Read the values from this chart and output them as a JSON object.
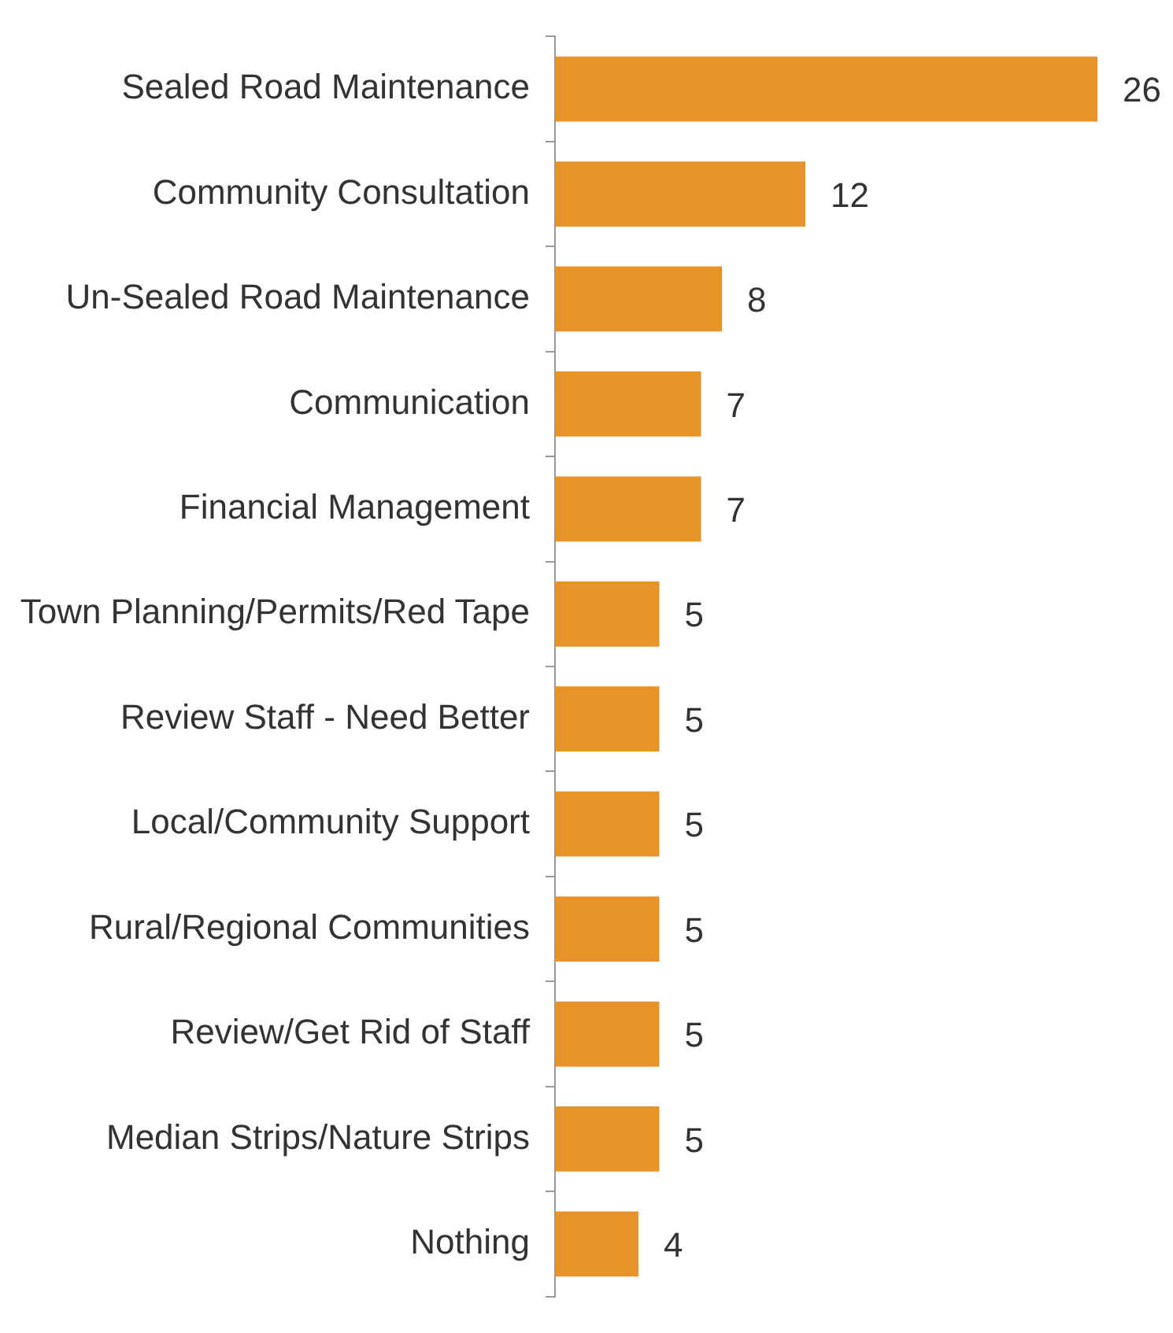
{
  "chart_data": {
    "type": "bar",
    "orientation": "horizontal",
    "categories": [
      "Sealed Road Maintenance",
      "Community Consultation",
      "Un-Sealed Road Maintenance",
      "Communication",
      "Financial Management",
      "Town Planning/Permits/Red Tape",
      "Review Staff - Need Better",
      "Local/Community Support",
      "Rural/Regional Communities",
      "Review/Get Rid of Staff",
      "Median Strips/Nature Strips",
      "Nothing"
    ],
    "values": [
      26,
      12,
      8,
      7,
      7,
      5,
      5,
      5,
      5,
      5,
      5,
      4
    ],
    "color": "#e8922a",
    "data_labels": true,
    "tick_labels": "y"
  }
}
